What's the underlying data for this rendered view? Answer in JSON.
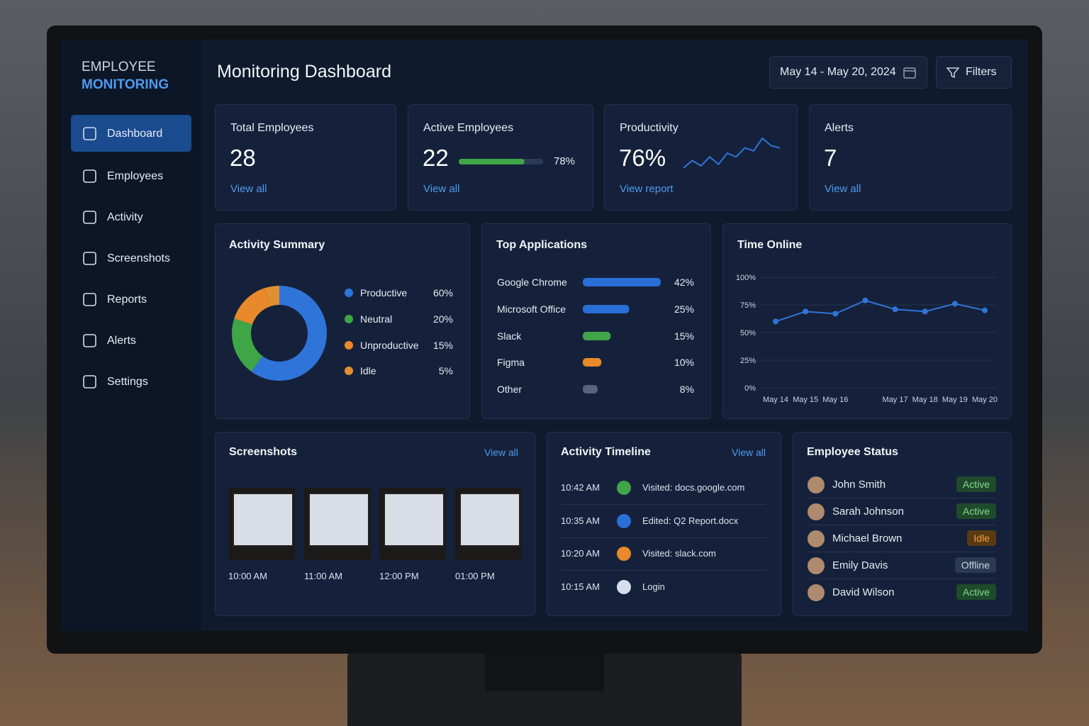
{
  "sidebar": {
    "brand": [
      "EMPLOYEE",
      "MONITORING"
    ],
    "nav": [
      "Dashboard",
      "Employees",
      "Activity",
      "Screenshots",
      "Reports",
      "Alerts",
      "Settings"
    ]
  },
  "header": {
    "title": "Monitoring Dashboard",
    "date_range": "May 14 - May 20, 2024",
    "filters": "Filters"
  },
  "kpis": [
    {
      "label": "Total Employees",
      "value": "28",
      "link": "View all"
    },
    {
      "label": "Active Employees",
      "value": "22",
      "link": "View all",
      "progress": {
        "value": 78,
        "label": "78%"
      }
    },
    {
      "label": "Productivity",
      "value": "76%",
      "link": "View report"
    },
    {
      "label": "Alerts",
      "value": "7",
      "link": "View all"
    }
  ],
  "chart_data": [
    {
      "type": "pie",
      "title": "Activity Summary",
      "categories": [
        "Productive",
        "Neutral",
        "Unproductive",
        "Idle"
      ],
      "values": [
        60,
        20,
        15,
        5
      ],
      "value_labels": [
        "60%",
        "20%",
        "15%",
        "5%"
      ],
      "colors": [
        "#2f74d8",
        "#3fa547",
        "#e8892b",
        "#e0902f"
      ]
    },
    {
      "type": "hbar",
      "title": "Top Applications",
      "categories": [
        "Google Chrome",
        "Microsoft Office",
        "Slack",
        "Figma",
        "Other"
      ],
      "values": [
        42,
        25,
        15,
        10,
        8
      ],
      "value_labels": [
        "42%",
        "25%",
        "15%",
        "10%",
        "8%"
      ],
      "colors": [
        "#2a6fd6",
        "#2a6fd6",
        "#3fa547",
        "#e8892b",
        "#56657d"
      ]
    },
    {
      "type": "line",
      "title": "Time Online",
      "categories": [
        "May 14",
        "May 15",
        "May 16",
        null,
        "May 17",
        "May 18",
        "May 19",
        "May 20"
      ],
      "values": [
        60,
        69,
        67,
        79,
        71,
        69,
        76,
        70
      ],
      "color": "#2f74d8",
      "ylim": [
        0,
        100
      ],
      "yticks": [
        {
          "value": 0,
          "label": "0%"
        },
        {
          "value": 25,
          "label": "25%"
        },
        {
          "value": 50,
          "label": "50%"
        },
        {
          "value": 75,
          "label": "75%"
        },
        {
          "value": 100,
          "label": "100%"
        }
      ],
      "grid": true
    },
    {
      "type": "sparkline",
      "values": [
        35,
        45,
        38,
        50,
        40,
        55,
        50,
        62,
        58,
        75,
        65,
        62
      ],
      "color": "#2f74d8"
    }
  ],
  "screenshots": {
    "title": "Screenshots",
    "link": "View all",
    "times": [
      "10:00 AM",
      "11:00 AM",
      "12:00 PM",
      "01:00 PM"
    ]
  },
  "timeline": {
    "title": "Activity Timeline",
    "link": "View all",
    "items": [
      {
        "time": "10:42 AM",
        "text": "Visited: docs.google.com"
      },
      {
        "time": "10:35 AM",
        "text": "Edited: Q2 Report.docx"
      },
      {
        "time": "10:20 AM",
        "text": "Visited: slack.com"
      },
      {
        "time": "10:15 AM",
        "text": "Login"
      }
    ]
  },
  "status": {
    "title": "Employee Status",
    "items": [
      {
        "name": "John Smith",
        "status": "Active"
      },
      {
        "name": "Sarah Johnson",
        "status": "Active"
      },
      {
        "name": "Michael Brown",
        "status": "Idle"
      },
      {
        "name": "Emily Davis",
        "status": "Offline"
      },
      {
        "name": "David Wilson",
        "status": "Active"
      }
    ]
  }
}
